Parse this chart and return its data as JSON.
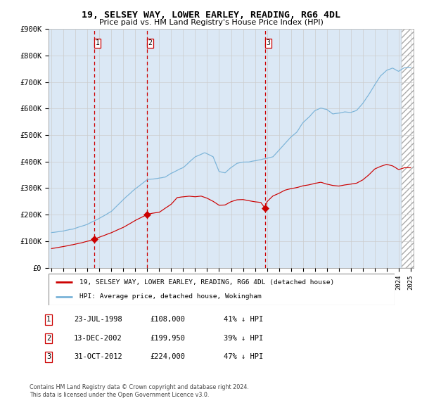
{
  "title": "19, SELSEY WAY, LOWER EARLEY, READING, RG6 4DL",
  "subtitle": "Price paid vs. HM Land Registry's House Price Index (HPI)",
  "yticks": [
    0,
    100000,
    200000,
    300000,
    400000,
    500000,
    600000,
    700000,
    800000,
    900000
  ],
  "ytick_labels": [
    "£0",
    "£100K",
    "£200K",
    "£300K",
    "£400K",
    "£500K",
    "£600K",
    "£700K",
    "£800K",
    "£900K"
  ],
  "hpi_color": "#7ab3d8",
  "price_color": "#cc0000",
  "vline_color": "#cc0000",
  "bg_shade_color": "#dbe8f5",
  "purchase_dates_dec": [
    1998.554,
    2002.954,
    2012.833
  ],
  "purchase_prices": [
    108000,
    199950,
    224000
  ],
  "purchase_labels": [
    "1",
    "2",
    "3"
  ],
  "legend_label_price": "19, SELSEY WAY, LOWER EARLEY, READING, RG6 4DL (detached house)",
  "legend_label_hpi": "HPI: Average price, detached house, Wokingham",
  "table_rows": [
    [
      "1",
      "23-JUL-1998",
      "£108,000",
      "41% ↓ HPI"
    ],
    [
      "2",
      "13-DEC-2002",
      "£199,950",
      "39% ↓ HPI"
    ],
    [
      "3",
      "31-OCT-2012",
      "£224,000",
      "47% ↓ HPI"
    ]
  ],
  "footnote1": "Contains HM Land Registry data © Crown copyright and database right 2024.",
  "footnote2": "This data is licensed under the Open Government Licence v3.0.",
  "xmin": 1994.75,
  "xmax": 2025.25,
  "ymin": 0,
  "ymax": 900000,
  "hatch_start": 2024.25,
  "hatch_end": 2025.25
}
